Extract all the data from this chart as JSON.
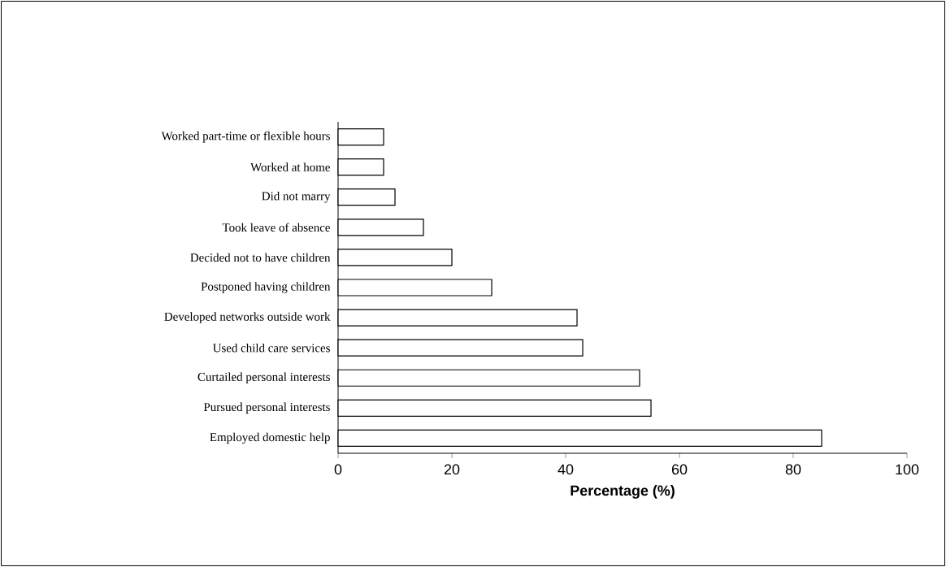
{
  "chart_data": {
    "type": "bar",
    "orientation": "horizontal",
    "xlabel": "Percentage (%)",
    "categories": [
      "Worked part-time or flexible hours",
      "Worked at home",
      "Did not marry",
      "Took leave of absence",
      "Decided not to have children",
      "Postponed having children",
      "Developed networks outside work",
      "Used child care services",
      "Curtailed personal interests",
      "Pursued personal interests",
      "Employed domestic help"
    ],
    "values": [
      8,
      8,
      10,
      15,
      20,
      27,
      42,
      43,
      53,
      55,
      85
    ],
    "color": "#ffffff",
    "xlim": [
      0,
      100
    ],
    "xticks": [
      0,
      20,
      40,
      60,
      80,
      100
    ]
  }
}
